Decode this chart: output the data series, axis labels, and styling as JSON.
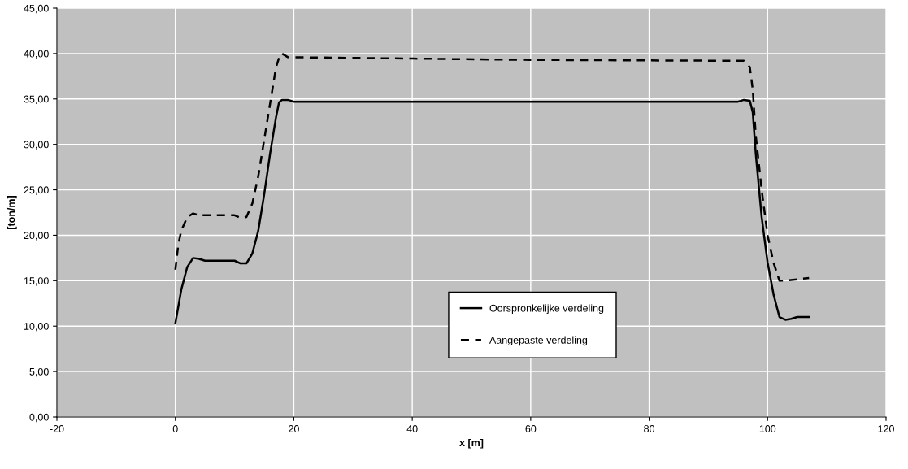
{
  "chart_data": {
    "type": "line",
    "xlabel": "x [m]",
    "ylabel": "[ton/m]",
    "xlim": [
      -20,
      120
    ],
    "xticks": [
      -20,
      0,
      20,
      40,
      60,
      80,
      100,
      120
    ],
    "ylim": [
      0,
      45
    ],
    "yticks": [
      {
        "value": 0,
        "label": "0,00"
      },
      {
        "value": 5,
        "label": "5,00"
      },
      {
        "value": 10,
        "label": "10,00"
      },
      {
        "value": 15,
        "label": "15,00"
      },
      {
        "value": 20,
        "label": "20,00"
      },
      {
        "value": 25,
        "label": "25,00"
      },
      {
        "value": 30,
        "label": "30,00"
      },
      {
        "value": 35,
        "label": "35,00"
      },
      {
        "value": 40,
        "label": "40,00"
      },
      {
        "value": 45,
        "label": "45,00"
      }
    ],
    "grid": true,
    "legend": "bottom",
    "series": [
      {
        "name": "Oorspronkelijke verdeling",
        "color": "#000000",
        "line_style": "solid",
        "x": [
          0,
          1,
          2,
          3,
          4,
          5,
          10,
          11,
          12,
          13,
          14,
          15,
          16,
          17,
          17.5,
          18,
          19,
          20,
          95,
          96,
          97,
          97.5,
          98,
          99,
          100,
          101,
          102,
          103,
          104,
          105,
          107
        ],
        "values": [
          10.3,
          14,
          16.5,
          17.5,
          17.4,
          17.2,
          17.2,
          16.9,
          16.9,
          18,
          20.5,
          24.5,
          29,
          33,
          34.6,
          34.9,
          34.9,
          34.7,
          34.7,
          34.9,
          34.8,
          33.5,
          29,
          22,
          17,
          13.5,
          11,
          10.7,
          10.8,
          11,
          11
        ]
      },
      {
        "name": "Aangepaste verdeling",
        "color": "#000000",
        "line_style": "dashed",
        "x": [
          0,
          0.5,
          1,
          2,
          3,
          4,
          10,
          11,
          12,
          13,
          14,
          15,
          16,
          17,
          17.7,
          18,
          19,
          60,
          96,
          97,
          97.5,
          98,
          99,
          100,
          101,
          102,
          103,
          107
        ],
        "values": [
          16.2,
          19,
          20.5,
          22,
          22.4,
          22.2,
          22.2,
          21.9,
          22,
          23.5,
          26.5,
          30.5,
          34.5,
          38.5,
          39.9,
          40,
          39.6,
          39.3,
          39.2,
          38.5,
          36,
          31,
          25,
          20,
          17,
          15,
          15,
          15.3
        ]
      }
    ]
  }
}
